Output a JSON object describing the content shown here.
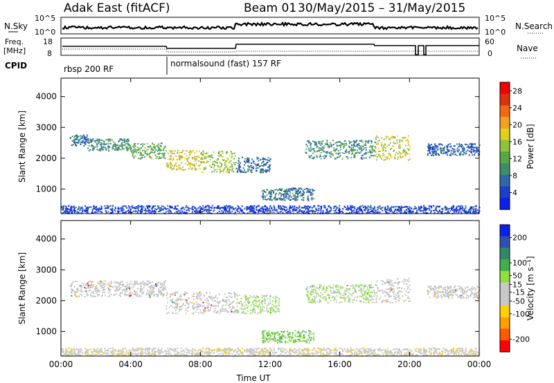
{
  "header": {
    "title": "Adak East (fitACF)",
    "beam": "Beam 01",
    "date_range": "30/May/2015 – 31/May/2015"
  },
  "strip_labels": {
    "nsky": "N.Sky",
    "nsearch": "N.Search",
    "freq": "Freq.",
    "mhz": "[MHz]",
    "nave": "Nave",
    "cpid": "CPID",
    "nsky_ticks": [
      "10^5",
      "10^0"
    ],
    "nsearch_ticks": [
      "10^5",
      "10^0"
    ],
    "freq_ticks": [
      "18",
      "8"
    ],
    "nave_ticks": [
      "60",
      "0"
    ]
  },
  "cpid_segments": [
    {
      "label": "rbsp 200 RF",
      "start_hour": 0
    },
    {
      "label": "normalsound (fast) 157 RF",
      "start_hour": 6
    }
  ],
  "colors": {
    "power_scale": [
      "#0a1ff0",
      "#1a3fc8",
      "#2f6aa8",
      "#3f8e6a",
      "#55a845",
      "#8fc23a",
      "#e0d020",
      "#f2a020",
      "#f26a10",
      "#e03010",
      "#f00000"
    ],
    "velocity_scale": [
      "#ff0000",
      "#ff5a00",
      "#ffa000",
      "#ffd000",
      "#c8c8c8",
      "#c8c8c8",
      "#8fe040",
      "#3fb04a",
      "#2f8a6a",
      "#3050b0",
      "#0a1ff0"
    ],
    "velocity_ionosphere_gray": "#c4c4c4"
  },
  "chart_data": [
    {
      "type": "heatmap",
      "panel": "power",
      "ylabel": "Slant Range [km]",
      "xlabel": "",
      "x_ticks": [
        "00:00",
        "04:00",
        "08:00",
        "12:00",
        "16:00",
        "20:00",
        "00:00"
      ],
      "x_range_hours": [
        0,
        24
      ],
      "y_ticks": [
        1000,
        2000,
        3000,
        4000
      ],
      "ylim": [
        200,
        4600
      ],
      "colorbar": {
        "label": "Power [dB]",
        "ticks": [
          4,
          8,
          12,
          16,
          20,
          24,
          28
        ],
        "range": [
          0,
          30
        ]
      },
      "scatter_bands": [
        {
          "start_hour": 0.5,
          "end_hour": 1.5,
          "center_km": 2600,
          "width_km": 180,
          "level": 6
        },
        {
          "start_hour": 1.5,
          "end_hour": 4.0,
          "center_km": 2450,
          "width_km": 200,
          "level": 9
        },
        {
          "start_hour": 4.0,
          "end_hour": 6.0,
          "center_km": 2250,
          "width_km": 260,
          "level": 12
        },
        {
          "start_hour": 6.0,
          "end_hour": 8.0,
          "center_km": 1950,
          "width_km": 320,
          "level": 18
        },
        {
          "start_hour": 8.0,
          "end_hour": 10.0,
          "center_km": 1900,
          "width_km": 350,
          "level": 15
        },
        {
          "start_hour": 10.0,
          "end_hour": 12.0,
          "center_km": 1800,
          "width_km": 250,
          "level": 6
        },
        {
          "start_hour": 11.5,
          "end_hour": 14.5,
          "center_km": 850,
          "width_km": 200,
          "level": 7
        },
        {
          "start_hour": 14.0,
          "end_hour": 18.0,
          "center_km": 2300,
          "width_km": 300,
          "level": 9
        },
        {
          "start_hour": 18.0,
          "end_hour": 20.0,
          "center_km": 2350,
          "width_km": 400,
          "level": 17
        },
        {
          "start_hour": 21.0,
          "end_hour": 24.0,
          "center_km": 2300,
          "width_km": 200,
          "level": 5
        },
        {
          "start_hour": 0.0,
          "end_hour": 24.0,
          "center_km": 300,
          "width_km": 180,
          "level": 3
        }
      ]
    },
    {
      "type": "heatmap",
      "panel": "velocity",
      "ylabel": "Slant Range [km]",
      "xlabel": "Time UT",
      "x_ticks": [
        "00:00",
        "04:00",
        "08:00",
        "12:00",
        "16:00",
        "20:00",
        "00:00"
      ],
      "x_range_hours": [
        0,
        24
      ],
      "y_ticks": [
        1000,
        2000,
        3000,
        4000
      ],
      "ylim": [
        200,
        4600
      ],
      "colorbar": {
        "label": "Velocity [m s⁻¹]",
        "ticks": [
          200,
          100,
          50,
          15,
          -15,
          -50,
          -100,
          -200
        ],
        "range": [
          -250,
          250
        ]
      },
      "scatter_bands": [
        {
          "start_hour": 0.5,
          "end_hour": 6.0,
          "center_km": 2400,
          "width_km": 260,
          "velocity": 0
        },
        {
          "start_hour": 6.0,
          "end_hour": 10.0,
          "center_km": 1950,
          "width_km": 350,
          "velocity": 0
        },
        {
          "start_hour": 10.0,
          "end_hour": 12.5,
          "center_km": 1900,
          "width_km": 300,
          "velocity": 30
        },
        {
          "start_hour": 11.5,
          "end_hour": 14.5,
          "center_km": 850,
          "width_km": 200,
          "velocity": 60
        },
        {
          "start_hour": 14.0,
          "end_hour": 18.0,
          "center_km": 2250,
          "width_km": 300,
          "velocity": 30
        },
        {
          "start_hour": 18.0,
          "end_hour": 20.0,
          "center_km": 2350,
          "width_km": 400,
          "velocity": 0
        },
        {
          "start_hour": 21.0,
          "end_hour": 24.0,
          "center_km": 2300,
          "width_km": 200,
          "velocity": 0
        },
        {
          "start_hour": 0.0,
          "end_hour": 24.0,
          "center_km": 300,
          "width_km": 180,
          "velocity": -40
        }
      ]
    }
  ]
}
